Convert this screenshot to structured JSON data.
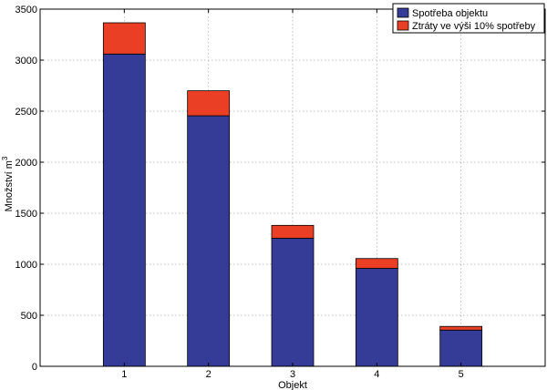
{
  "chart_data": {
    "type": "bar",
    "stacked": true,
    "categories": [
      "1",
      "2",
      "3",
      "4",
      "5"
    ],
    "series": [
      {
        "name": "Spotřeba objektu",
        "color": "#353c98",
        "values": [
          3060,
          2455,
          1255,
          960,
          355
        ]
      },
      {
        "name": "Ztráty ve výši 10% spotřeby",
        "color": "#ea3f24",
        "values": [
          306,
          245,
          126,
          96,
          36
        ]
      }
    ],
    "xlabel": "Objekt",
    "ylabel_main": "Množství m",
    "ylabel_sup": "3",
    "ylim": [
      0,
      3500
    ],
    "yticks": [
      0,
      500,
      1000,
      1500,
      2000,
      2500,
      3000,
      3500
    ],
    "xlim": [
      0,
      6
    ],
    "grid": true,
    "legend_position": "top-right"
  }
}
